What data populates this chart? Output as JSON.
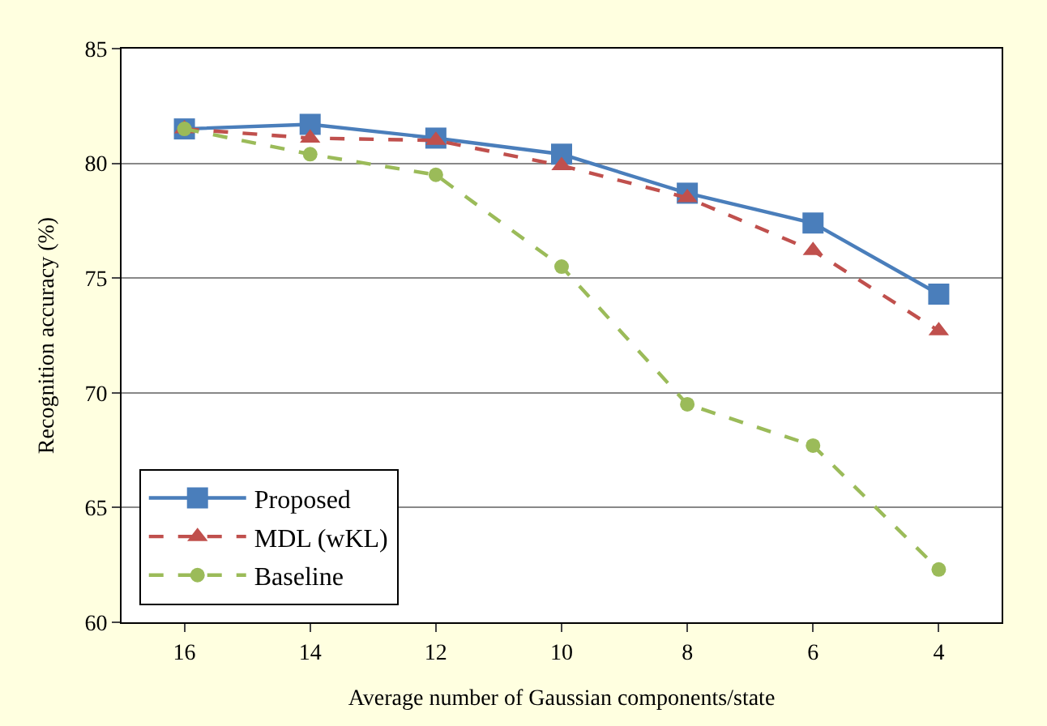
{
  "chart_data": {
    "type": "line",
    "xlabel": "Average number of Gaussian components/state",
    "ylabel": "Recognition accuracy (%)",
    "categories": [
      "16",
      "14",
      "12",
      "10",
      "8",
      "6",
      "4"
    ],
    "series": [
      {
        "name": "Proposed",
        "color": "#4a7ebb",
        "values": [
          81.5,
          81.7,
          81.1,
          80.4,
          78.7,
          77.4,
          74.3
        ],
        "marker": "square",
        "line_style": "solid"
      },
      {
        "name": "MDL (wKL)",
        "color": "#c0504d",
        "values": [
          81.5,
          81.1,
          81.0,
          79.9,
          78.5,
          76.2,
          72.7
        ],
        "marker": "triangle",
        "line_style": "dashed"
      },
      {
        "name": "Baseline",
        "color": "#9bbb59",
        "values": [
          81.5,
          80.4,
          79.5,
          75.5,
          69.5,
          67.7,
          62.3
        ],
        "marker": "circle",
        "line_style": "dashed"
      }
    ],
    "ylim": [
      60,
      85
    ],
    "yticks": [
      60,
      65,
      70,
      75,
      80,
      85
    ],
    "grid": "y",
    "legend": "bottom left"
  }
}
